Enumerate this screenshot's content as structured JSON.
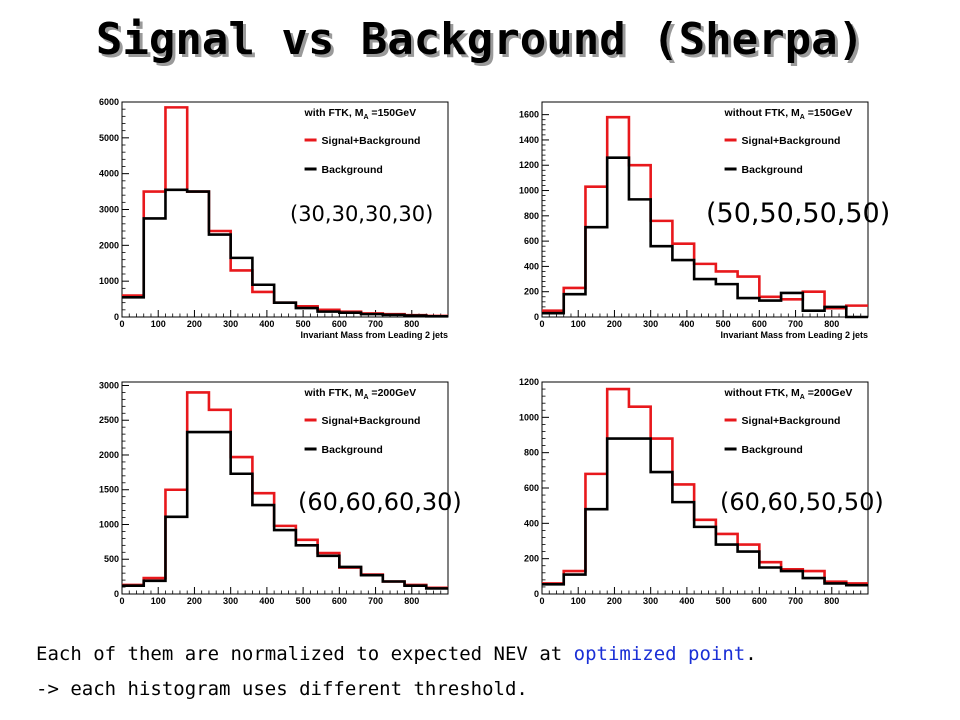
{
  "title": "Signal vs Background (Sherpa)",
  "footer": {
    "line1_pre": "Each of them are normalized to expected NEV at ",
    "line1_highlight": "optimized point",
    "line1_post": ".",
    "line2": "-> each histogram uses different threshold.",
    "highlight_color": "#1a2fd6"
  },
  "colors": {
    "signal_plus_background": "#e8181c",
    "background": "#000000"
  },
  "chart_data": [
    {
      "type": "histogram",
      "legend_title_pre": "with FTK, M",
      "legend_title_sub": "A",
      "legend_title_post": " =150GeV",
      "legend": [
        "Signal+Background",
        "Background"
      ],
      "xlabel": "Invariant Mass from Leading 2 jets",
      "xlim": [
        0,
        900
      ],
      "ylim": [
        0,
        6000
      ],
      "xticks": [
        0,
        100,
        200,
        300,
        400,
        500,
        600,
        700,
        800
      ],
      "yticks": [
        0,
        1000,
        2000,
        3000,
        4000,
        5000,
        6000
      ],
      "bin_width": 60,
      "series": [
        {
          "name": "Signal+Background",
          "values": [
            600,
            3500,
            5850,
            3500,
            2400,
            1300,
            700,
            400,
            300,
            200,
            150,
            100,
            80,
            50,
            30
          ]
        },
        {
          "name": "Background",
          "values": [
            550,
            2750,
            3550,
            3500,
            2300,
            1650,
            900,
            400,
            250,
            150,
            120,
            80,
            60,
            40,
            20
          ]
        }
      ],
      "annotation": "(30,30,30,30)"
    },
    {
      "type": "histogram",
      "legend_title_pre": "without FTK, M",
      "legend_title_sub": "A",
      "legend_title_post": " =150GeV",
      "legend": [
        "Signal+Background",
        "Background"
      ],
      "xlabel": "Invariant Mass from Leading 2 jets",
      "xlim": [
        0,
        900
      ],
      "ylim": [
        0,
        1700
      ],
      "xticks": [
        0,
        100,
        200,
        300,
        400,
        500,
        600,
        700,
        800
      ],
      "yticks": [
        0,
        200,
        400,
        600,
        800,
        1000,
        1200,
        1400,
        1600
      ],
      "bin_width": 60,
      "series": [
        {
          "name": "Signal+Background",
          "values": [
            50,
            230,
            1030,
            1580,
            1200,
            760,
            580,
            420,
            360,
            320,
            160,
            140,
            200,
            70,
            90
          ]
        },
        {
          "name": "Background",
          "values": [
            30,
            180,
            710,
            1260,
            930,
            560,
            450,
            300,
            260,
            150,
            130,
            190,
            50,
            80,
            0
          ]
        }
      ],
      "annotation": "(50,50,50,50)"
    },
    {
      "type": "histogram",
      "legend_title_pre": "with FTK, M",
      "legend_title_sub": "A",
      "legend_title_post": " =200GeV",
      "legend": [
        "Signal+Background",
        "Background"
      ],
      "xlabel": "",
      "xlim": [
        0,
        900
      ],
      "ylim": [
        0,
        3050
      ],
      "xticks": [
        0,
        100,
        200,
        300,
        400,
        500,
        600,
        700,
        800
      ],
      "yticks": [
        0,
        500,
        1000,
        1500,
        2000,
        2500,
        3000
      ],
      "bin_width": 60,
      "series": [
        {
          "name": "Signal+Background",
          "values": [
            130,
            230,
            1500,
            2900,
            2650,
            1970,
            1450,
            980,
            780,
            590,
            380,
            280,
            180,
            130,
            90
          ]
        },
        {
          "name": "Background",
          "values": [
            120,
            190,
            1110,
            2330,
            2330,
            1730,
            1280,
            920,
            700,
            550,
            390,
            270,
            180,
            120,
            80
          ]
        }
      ],
      "annotation": "(60,60,60,30)"
    },
    {
      "type": "histogram",
      "legend_title_pre": "without FTK, M",
      "legend_title_sub": "A",
      "legend_title_post": " =200GeV",
      "legend": [
        "Signal+Background",
        "Background"
      ],
      "xlabel": "",
      "xlim": [
        0,
        900
      ],
      "ylim": [
        0,
        1200
      ],
      "xticks": [
        0,
        100,
        200,
        300,
        400,
        500,
        600,
        700,
        800
      ],
      "yticks": [
        0,
        200,
        400,
        600,
        800,
        1000,
        1200
      ],
      "bin_width": 60,
      "series": [
        {
          "name": "Signal+Background",
          "values": [
            60,
            130,
            680,
            1160,
            1060,
            880,
            620,
            420,
            340,
            280,
            180,
            140,
            130,
            70,
            60
          ]
        },
        {
          "name": "Background",
          "values": [
            55,
            110,
            480,
            880,
            880,
            690,
            520,
            380,
            280,
            240,
            150,
            130,
            90,
            60,
            50
          ]
        }
      ],
      "annotation": "(60,60,50,50)"
    }
  ]
}
